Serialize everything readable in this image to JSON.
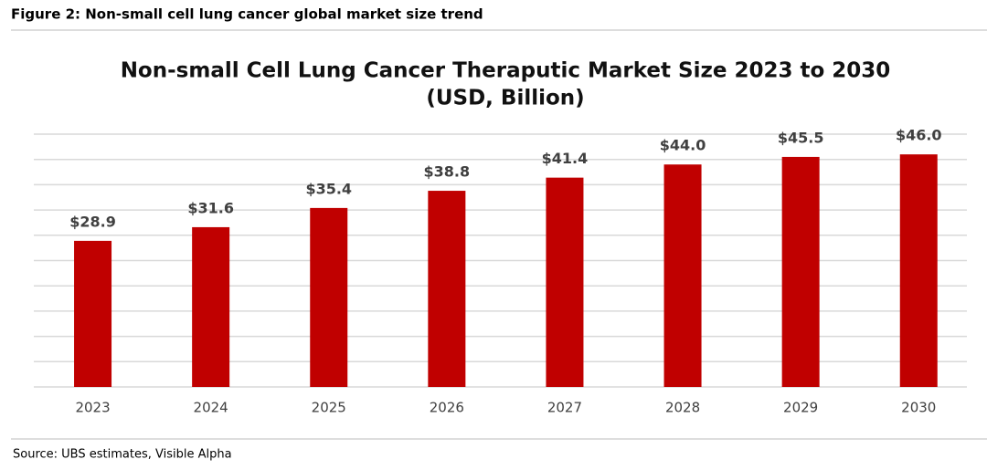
{
  "caption": "Figure 2: Non-small cell lung cancer global market size trend",
  "source": "Source: UBS estimates, Visible Alpha",
  "chart_data": {
    "type": "bar",
    "title": "Non-small Cell Lung Cancer Theraputic Market Size 2023 to 2030",
    "subtitle": "(USD, Billion)",
    "categories": [
      "2023",
      "2024",
      "2025",
      "2026",
      "2027",
      "2028",
      "2029",
      "2030"
    ],
    "values": [
      28.9,
      31.6,
      35.4,
      38.8,
      41.4,
      44.0,
      45.5,
      46.0
    ],
    "value_labels": [
      "$28.9",
      "$31.6",
      "$35.4",
      "$38.8",
      "$41.4",
      "$44.0",
      "$45.5",
      "$46.0"
    ],
    "color": "#c00000",
    "ylim": [
      0,
      50
    ],
    "yticks": [
      0,
      5,
      10,
      15,
      20,
      25,
      30,
      35,
      40,
      45,
      50
    ],
    "grid": true
  }
}
